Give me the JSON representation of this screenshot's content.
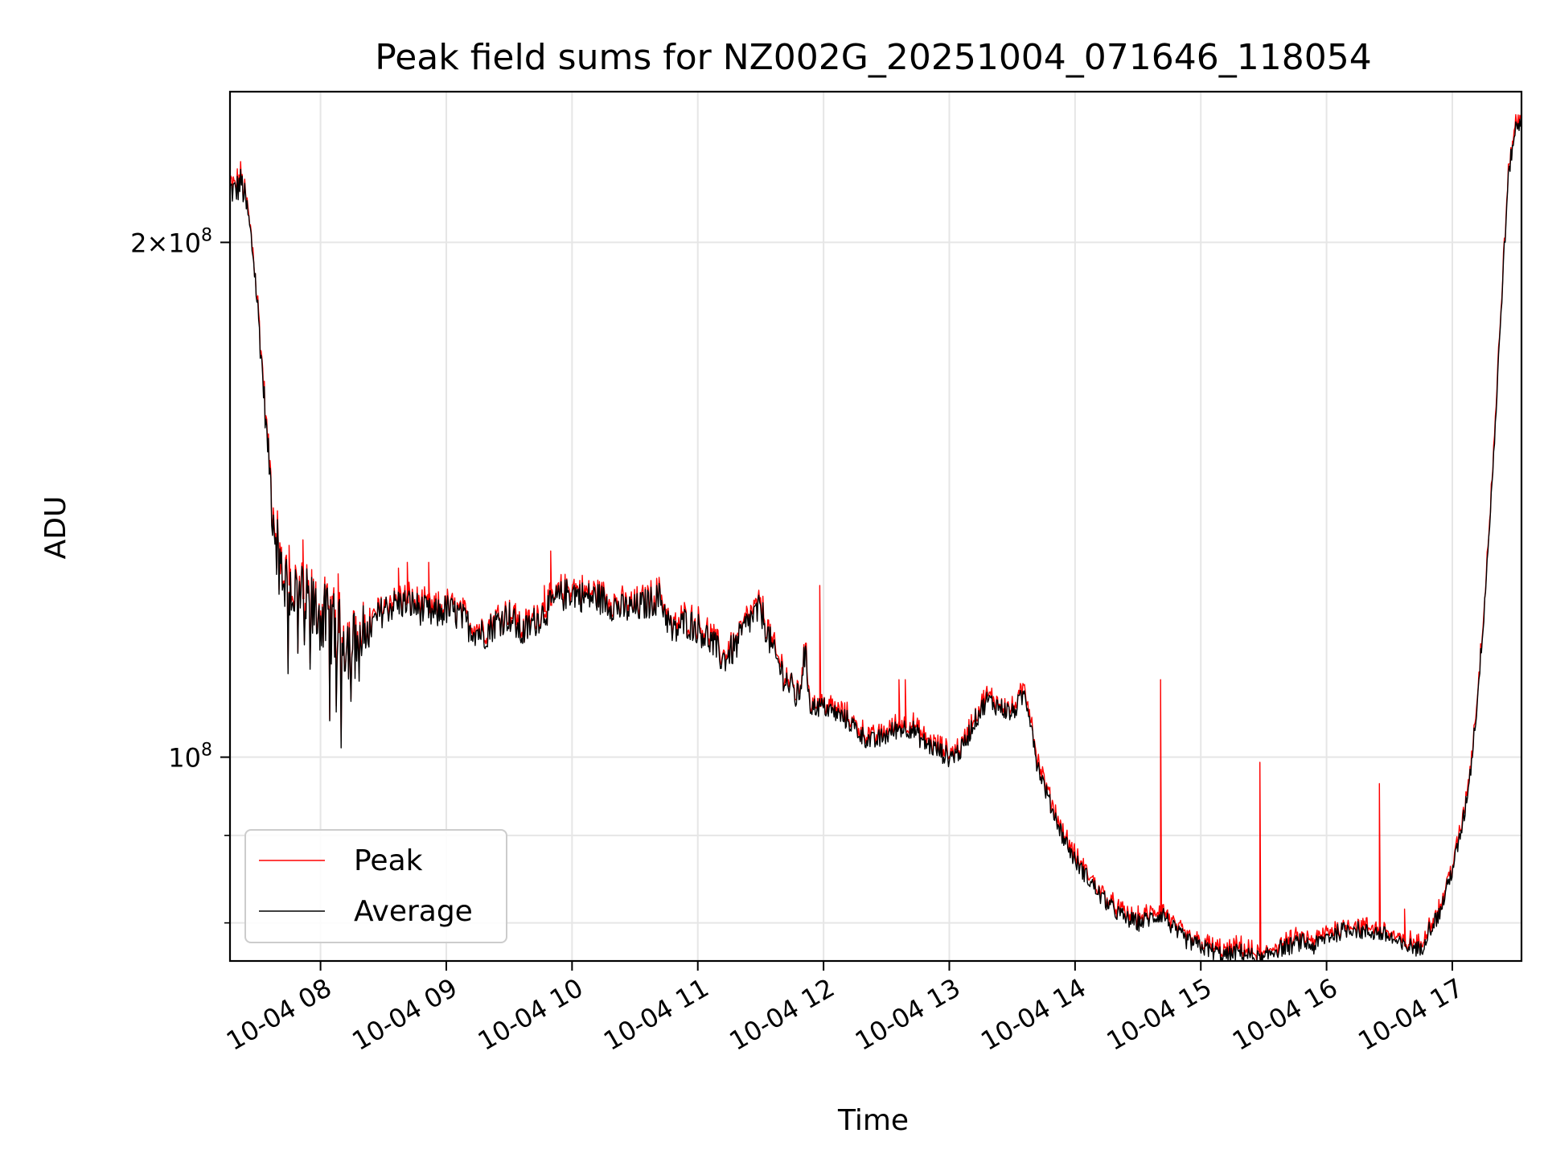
{
  "chart_data": {
    "type": "line",
    "title": "Peak field sums for NZ002G_20251004_071646_118054",
    "xlabel": "Time",
    "ylabel": "ADU",
    "yscale": "log",
    "xlim_hours": [
      7.28,
      17.55
    ],
    "ylim": [
      76000000,
      245000000
    ],
    "x_ticks": [
      {
        "hour": 8,
        "label": "10-04 08"
      },
      {
        "hour": 9,
        "label": "10-04 09"
      },
      {
        "hour": 10,
        "label": "10-04 10"
      },
      {
        "hour": 11,
        "label": "10-04 11"
      },
      {
        "hour": 12,
        "label": "10-04 12"
      },
      {
        "hour": 13,
        "label": "10-04 13"
      },
      {
        "hour": 14,
        "label": "10-04 14"
      },
      {
        "hour": 15,
        "label": "10-04 15"
      },
      {
        "hour": 16,
        "label": "10-04 16"
      },
      {
        "hour": 17,
        "label": "10-04 17"
      }
    ],
    "y_major_ticks": [
      {
        "value": 100000000,
        "mantissa": "",
        "exponent": "8"
      },
      {
        "value": 200000000,
        "mantissa": "2×",
        "exponent": "8"
      }
    ],
    "y_minor_ticks": [
      80000000,
      90000000
    ],
    "grid": true,
    "legend_position": "lower-left",
    "series": [
      {
        "name": "Average",
        "color": "#000000",
        "points": [
          [
            7.28,
            215000000.0
          ],
          [
            7.32,
            214000000.0
          ],
          [
            7.37,
            217000000.0
          ],
          [
            7.42,
            208000000.0
          ],
          [
            7.47,
            195000000.0
          ],
          [
            7.52,
            175000000.0
          ],
          [
            7.57,
            155000000.0
          ],
          [
            7.62,
            140000000.0
          ],
          [
            7.67,
            131000000.0
          ],
          [
            7.72,
            127000000.0
          ],
          [
            7.78,
            125000000.0
          ],
          [
            7.85,
            124000000.0
          ],
          [
            7.92,
            122000000.0
          ],
          [
            8.0,
            121000000.0
          ],
          [
            8.1,
            119000000.0
          ],
          [
            8.2,
            117000000.0
          ],
          [
            8.3,
            116000000.0
          ],
          [
            8.4,
            119000000.0
          ],
          [
            8.5,
            122000000.0
          ],
          [
            8.6,
            123000000.0
          ],
          [
            8.7,
            123000000.0
          ],
          [
            8.8,
            122000000.0
          ],
          [
            8.9,
            121000000.0
          ],
          [
            9.0,
            122000000.0
          ],
          [
            9.1,
            121000000.0
          ],
          [
            9.2,
            119000000.0
          ],
          [
            9.3,
            118000000.0
          ],
          [
            9.4,
            120000000.0
          ],
          [
            9.5,
            121000000.0
          ],
          [
            9.6,
            118000000.0
          ],
          [
            9.7,
            120000000.0
          ],
          [
            9.8,
            122000000.0
          ],
          [
            9.9,
            124000000.0
          ],
          [
            10.0,
            125000000.0
          ],
          [
            10.1,
            124000000.0
          ],
          [
            10.2,
            124000000.0
          ],
          [
            10.3,
            123000000.0
          ],
          [
            10.4,
            122000000.0
          ],
          [
            10.5,
            122000000.0
          ],
          [
            10.6,
            123000000.0
          ],
          [
            10.7,
            124000000.0
          ],
          [
            10.8,
            118000000.0
          ],
          [
            10.9,
            120000000.0
          ],
          [
            11.0,
            119000000.0
          ],
          [
            11.1,
            117000000.0
          ],
          [
            11.2,
            114000000.0
          ],
          [
            11.3,
            116000000.0
          ],
          [
            11.4,
            120000000.0
          ],
          [
            11.5,
            122000000.0
          ],
          [
            11.6,
            115000000.0
          ],
          [
            11.7,
            111000000.0
          ],
          [
            11.8,
            108000000.0
          ],
          [
            11.85,
            115000000.0
          ],
          [
            11.9,
            107000000.0
          ],
          [
            12.0,
            107000000.0
          ],
          [
            12.1,
            106000000.0
          ],
          [
            12.2,
            105000000.0
          ],
          [
            12.3,
            103000000.0
          ],
          [
            12.4,
            102000000.0
          ],
          [
            12.5,
            103000000.0
          ],
          [
            12.6,
            104000000.0
          ],
          [
            12.7,
            104000000.0
          ],
          [
            12.8,
            102000000.0
          ],
          [
            12.9,
            101000000.0
          ],
          [
            13.0,
            100000000.0
          ],
          [
            13.1,
            101000000.0
          ],
          [
            13.2,
            105000000.0
          ],
          [
            13.3,
            108000000.0
          ],
          [
            13.4,
            107000000.0
          ],
          [
            13.5,
            106000000.0
          ],
          [
            13.6,
            109000000.0
          ],
          [
            13.65,
            105000000.0
          ],
          [
            13.7,
            99000000.0
          ],
          [
            13.8,
            94000000.0
          ],
          [
            13.9,
            90000000.0
          ],
          [
            14.0,
            87000000.0
          ],
          [
            14.1,
            85000000.0
          ],
          [
            14.2,
            83000000.0
          ],
          [
            14.3,
            81500000.0
          ],
          [
            14.4,
            80500000.0
          ],
          [
            14.5,
            80000000.0
          ],
          [
            14.6,
            80500000.0
          ],
          [
            14.7,
            81000000.0
          ],
          [
            14.75,
            80000000.0
          ],
          [
            14.8,
            79000000.0
          ],
          [
            14.9,
            78000000.0
          ],
          [
            15.0,
            77500000.0
          ],
          [
            15.1,
            77000000.0
          ],
          [
            15.2,
            76500000.0
          ],
          [
            15.3,
            77000000.0
          ],
          [
            15.4,
            76500000.0
          ],
          [
            15.5,
            76000000.0
          ],
          [
            15.55,
            76800000.0
          ],
          [
            15.6,
            77200000.0
          ],
          [
            15.7,
            77500000.0
          ],
          [
            15.8,
            78000000.0
          ],
          [
            15.9,
            77500000.0
          ],
          [
            16.0,
            78500000.0
          ],
          [
            16.1,
            79000000.0
          ],
          [
            16.2,
            79500000.0
          ],
          [
            16.3,
            79000000.0
          ],
          [
            16.4,
            79000000.0
          ],
          [
            16.5,
            78500000.0
          ],
          [
            16.6,
            77500000.0
          ],
          [
            16.7,
            77500000.0
          ],
          [
            16.75,
            77000000.0
          ],
          [
            16.8,
            79000000.0
          ],
          [
            16.9,
            81000000.0
          ],
          [
            17.0,
            86000000.0
          ],
          [
            17.05,
            89000000.0
          ],
          [
            17.1,
            93000000.0
          ],
          [
            17.15,
            99000000.0
          ],
          [
            17.2,
            108000000.0
          ],
          [
            17.25,
            121000000.0
          ],
          [
            17.3,
            138000000.0
          ],
          [
            17.35,
            160000000.0
          ],
          [
            17.4,
            190000000.0
          ],
          [
            17.45,
            220000000.0
          ],
          [
            17.5,
            233000000.0
          ],
          [
            17.55,
            235000000.0
          ]
        ]
      },
      {
        "name": "Peak",
        "color": "#ff0000",
        "spikes": [
          [
            7.68,
            128000000.0
          ],
          [
            7.75,
            133000000.0
          ],
          [
            7.86,
            134000000.0
          ],
          [
            8.14,
            128000000.0
          ],
          [
            8.62,
            129000000.0
          ],
          [
            8.69,
            130000000.0
          ],
          [
            8.86,
            130000000.0
          ],
          [
            9.55,
            123000000.0
          ],
          [
            9.78,
            126000000.0
          ],
          [
            9.83,
            132000000.0
          ],
          [
            10.1,
            126000000.0
          ],
          [
            11.97,
            126000000.0
          ],
          [
            12.6,
            111000000.0
          ],
          [
            12.65,
            111000000.0
          ],
          [
            14.68,
            111000000.0
          ],
          [
            15.47,
            99300000.0
          ],
          [
            16.42,
            96500000.0
          ],
          [
            16.62,
            81500000.0
          ]
        ]
      }
    ]
  }
}
